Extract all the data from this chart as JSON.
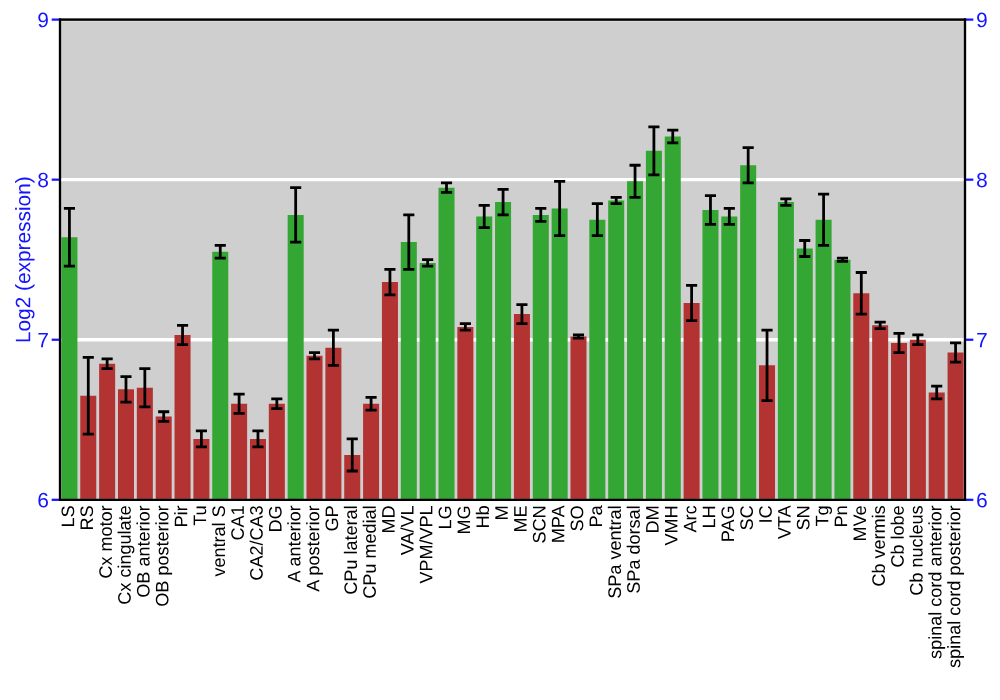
{
  "chart_data": {
    "type": "bar",
    "ylabel": "Log2 (expression)",
    "categories": [
      "LS",
      "RS",
      "Cx motor",
      "Cx cingulate",
      "OB anterior",
      "OB posterior",
      "Pir",
      "Tu",
      "ventral S",
      "CA1",
      "CA2/CA3",
      "DG",
      "A anterior",
      "A posterior",
      "GP",
      "CPu lateral",
      "CPu medial",
      "MD",
      "VA/VL",
      "VPM/VPL",
      "LG",
      "MG",
      "Hb",
      "M",
      "ME",
      "SCN",
      "MPA",
      "SO",
      "Pa",
      "SPa ventral",
      "SPa dorsal",
      "DM",
      "VMH",
      "Arc",
      "LH",
      "PAG",
      "SC",
      "IC",
      "VTA",
      "SN",
      "Tg",
      "Pn",
      "MVe",
      "Cb vermis",
      "Cb lobe",
      "Cb nucleus",
      "spinal cord anterior",
      "spinal cord posterior"
    ],
    "values": [
      7.64,
      6.65,
      6.85,
      6.69,
      6.7,
      6.52,
      7.03,
      6.38,
      7.55,
      6.6,
      6.38,
      6.6,
      7.78,
      6.9,
      6.95,
      6.28,
      6.6,
      7.36,
      7.61,
      7.48,
      7.95,
      7.08,
      7.77,
      7.86,
      7.16,
      7.78,
      7.82,
      7.02,
      7.75,
      7.87,
      7.99,
      8.18,
      8.27,
      7.23,
      7.81,
      7.77,
      8.09,
      6.84,
      7.86,
      7.57,
      7.75,
      7.5,
      7.29,
      7.09,
      6.98,
      7.0,
      6.67,
      6.92
    ],
    "errors": [
      0.18,
      0.24,
      0.03,
      0.08,
      0.12,
      0.03,
      0.06,
      0.05,
      0.04,
      0.06,
      0.05,
      0.03,
      0.17,
      0.02,
      0.11,
      0.1,
      0.04,
      0.08,
      0.17,
      0.02,
      0.03,
      0.02,
      0.07,
      0.08,
      0.06,
      0.04,
      0.17,
      0.01,
      0.1,
      0.02,
      0.1,
      0.15,
      0.04,
      0.11,
      0.09,
      0.05,
      0.11,
      0.22,
      0.02,
      0.05,
      0.16,
      0.01,
      0.13,
      0.02,
      0.06,
      0.03,
      0.04,
      0.06
    ],
    "colors": [
      "#33a633",
      "#b33333",
      "#b33333",
      "#b33333",
      "#b33333",
      "#b33333",
      "#b33333",
      "#b33333",
      "#33a633",
      "#b33333",
      "#b33333",
      "#b33333",
      "#33a633",
      "#b33333",
      "#b33333",
      "#b33333",
      "#b33333",
      "#b33333",
      "#33a633",
      "#33a633",
      "#33a633",
      "#b33333",
      "#33a633",
      "#33a633",
      "#b33333",
      "#33a633",
      "#33a633",
      "#b33333",
      "#33a633",
      "#33a633",
      "#33a633",
      "#33a633",
      "#33a633",
      "#b33333",
      "#33a633",
      "#33a633",
      "#33a633",
      "#b33333",
      "#33a633",
      "#33a633",
      "#33a633",
      "#33a633",
      "#b33333",
      "#b33333",
      "#b33333",
      "#b33333",
      "#b33333",
      "#b33333"
    ],
    "ylim": [
      6,
      9
    ],
    "yticks": [
      6,
      7,
      8,
      9
    ],
    "y2lim": [
      6,
      9
    ],
    "y2ticks": [
      6,
      7,
      8,
      9
    ],
    "grid": "y",
    "legend": false
  }
}
